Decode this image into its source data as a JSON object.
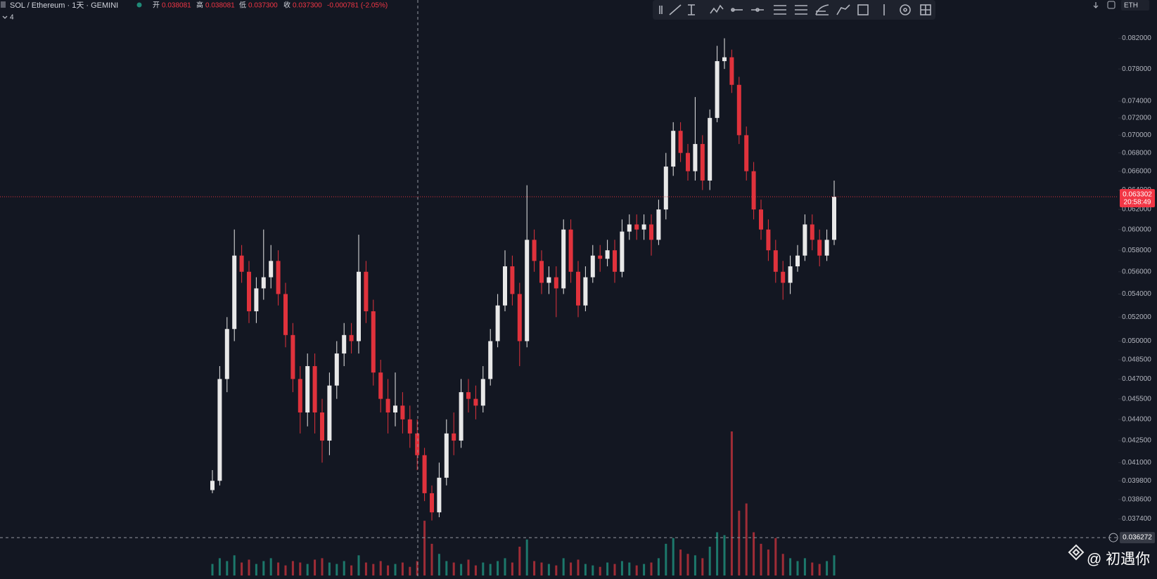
{
  "chart_data": {
    "type": "candlestick",
    "title": "SOL / Ethereum · 1天 · GEMINI",
    "legend": {
      "open_label": "开",
      "open": "0.038081",
      "high_label": "高",
      "high": "0.038081",
      "low_label": "低",
      "low": "0.037300",
      "close_label": "收",
      "close": "0.037300",
      "change": "-0.000781 (-2.05%)"
    },
    "indicator_count": 4,
    "currency": "ETH",
    "watermark": "@ 初遇你",
    "scale": "log",
    "grid": false,
    "up_color": "#e8e8e8",
    "down_color": "#e0323c",
    "volume_up_color": "#1f8a78",
    "volume_down_color": "#b8303a",
    "ylim": [
      0.0339,
      0.0873
    ],
    "yticks": [
      {
        "value": 0.082,
        "label": "0.082000"
      },
      {
        "value": 0.078,
        "label": "0.078000"
      },
      {
        "value": 0.074,
        "label": "0.074000"
      },
      {
        "value": 0.072,
        "label": "0.072000"
      },
      {
        "value": 0.07,
        "label": "0.070000"
      },
      {
        "value": 0.068,
        "label": "0.068000"
      },
      {
        "value": 0.066,
        "label": "0.066000"
      },
      {
        "value": 0.064,
        "label": "0.064000"
      },
      {
        "value": 0.062,
        "label": "0.062000"
      },
      {
        "value": 0.06,
        "label": "0.060000"
      },
      {
        "value": 0.058,
        "label": "0.058000"
      },
      {
        "value": 0.056,
        "label": "0.056000"
      },
      {
        "value": 0.054,
        "label": "0.054000"
      },
      {
        "value": 0.052,
        "label": "0.052000"
      },
      {
        "value": 0.05,
        "label": "0.050000"
      },
      {
        "value": 0.0485,
        "label": "0.048500"
      },
      {
        "value": 0.047,
        "label": "0.047000"
      },
      {
        "value": 0.0455,
        "label": "0.045500"
      },
      {
        "value": 0.044,
        "label": "0.044000"
      },
      {
        "value": 0.0425,
        "label": "0.042500"
      },
      {
        "value": 0.041,
        "label": "0.041000"
      },
      {
        "value": 0.0398,
        "label": "0.039800"
      },
      {
        "value": 0.0386,
        "label": "0.038600"
      },
      {
        "value": 0.0374,
        "label": "0.037400"
      }
    ],
    "last_price": {
      "value": 0.063302,
      "label": "0.063302"
    },
    "countdown": "20:58:49",
    "crosshair_price": {
      "value": 0.036272,
      "label": "0.036272"
    },
    "open": [
      0.0392,
      0.0398,
      0.047,
      0.051,
      0.0575,
      0.056,
      0.0525,
      0.0545,
      0.0555,
      0.057,
      0.054,
      0.0505,
      0.047,
      0.0445,
      0.048,
      0.0445,
      0.0425,
      0.0465,
      0.049,
      0.0505,
      0.05,
      0.056,
      0.0525,
      0.0475,
      0.0455,
      0.0445,
      0.045,
      0.044,
      0.043,
      0.0415,
      0.039,
      0.0378,
      0.04,
      0.043,
      0.0425,
      0.046,
      0.0455,
      0.045,
      0.047,
      0.05,
      0.053,
      0.0565,
      0.054,
      0.05,
      0.059,
      0.057,
      0.055,
      0.0555,
      0.0545,
      0.06,
      0.056,
      0.053,
      0.0555,
      0.0575,
      0.0572,
      0.058,
      0.056,
      0.0598,
      0.0605,
      0.06,
      0.0605,
      0.059,
      0.062,
      0.0665,
      0.0705,
      0.068,
      0.066,
      0.069,
      0.065,
      0.072,
      0.079,
      0.0795,
      0.076,
      0.07,
      0.066,
      0.062,
      0.06,
      0.058,
      0.056,
      0.055,
      0.0565,
      0.0575,
      0.0605,
      0.059,
      0.0575,
      0.059
    ],
    "high": [
      0.0405,
      0.048,
      0.052,
      0.06,
      0.0585,
      0.057,
      0.0555,
      0.06,
      0.0585,
      0.058,
      0.055,
      0.0515,
      0.048,
      0.049,
      0.049,
      0.0455,
      0.0475,
      0.05,
      0.0515,
      0.0515,
      0.0595,
      0.057,
      0.0535,
      0.0485,
      0.047,
      0.0475,
      0.046,
      0.045,
      0.044,
      0.042,
      0.0395,
      0.041,
      0.044,
      0.0445,
      0.047,
      0.047,
      0.0465,
      0.048,
      0.051,
      0.054,
      0.058,
      0.0575,
      0.055,
      0.0645,
      0.06,
      0.058,
      0.0565,
      0.0565,
      0.061,
      0.061,
      0.057,
      0.0565,
      0.0585,
      0.0585,
      0.059,
      0.059,
      0.061,
      0.0615,
      0.0615,
      0.0615,
      0.0615,
      0.063,
      0.068,
      0.0715,
      0.0715,
      0.069,
      0.0745,
      0.07,
      0.073,
      0.081,
      0.082,
      0.0805,
      0.077,
      0.071,
      0.067,
      0.063,
      0.061,
      0.059,
      0.057,
      0.0575,
      0.0585,
      0.0615,
      0.0615,
      0.06,
      0.06,
      0.065
    ],
    "low": [
      0.039,
      0.0395,
      0.046,
      0.05,
      0.055,
      0.0515,
      0.0515,
      0.0535,
      0.0545,
      0.053,
      0.0495,
      0.046,
      0.043,
      0.0435,
      0.043,
      0.041,
      0.0415,
      0.0455,
      0.048,
      0.049,
      0.049,
      0.0515,
      0.0465,
      0.0445,
      0.043,
      0.0435,
      0.043,
      0.042,
      0.0405,
      0.0385,
      0.0373,
      0.0375,
      0.0395,
      0.0415,
      0.042,
      0.0445,
      0.044,
      0.0445,
      0.0465,
      0.0495,
      0.0525,
      0.053,
      0.048,
      0.0495,
      0.056,
      0.054,
      0.054,
      0.052,
      0.054,
      0.055,
      0.052,
      0.0525,
      0.055,
      0.056,
      0.0565,
      0.055,
      0.0555,
      0.059,
      0.059,
      0.059,
      0.0575,
      0.0585,
      0.061,
      0.0655,
      0.067,
      0.065,
      0.065,
      0.064,
      0.064,
      0.0715,
      0.078,
      0.075,
      0.069,
      0.065,
      0.061,
      0.059,
      0.057,
      0.055,
      0.0535,
      0.054,
      0.056,
      0.057,
      0.058,
      0.0565,
      0.057,
      0.0585
    ],
    "close": [
      0.0398,
      0.047,
      0.051,
      0.0575,
      0.056,
      0.0525,
      0.0545,
      0.0555,
      0.057,
      0.054,
      0.0505,
      0.047,
      0.0445,
      0.048,
      0.0445,
      0.0425,
      0.0465,
      0.049,
      0.0505,
      0.05,
      0.056,
      0.0525,
      0.0475,
      0.0455,
      0.0445,
      0.045,
      0.044,
      0.043,
      0.0415,
      0.039,
      0.0378,
      0.04,
      0.043,
      0.0425,
      0.046,
      0.0455,
      0.045,
      0.047,
      0.05,
      0.053,
      0.0565,
      0.054,
      0.05,
      0.059,
      0.057,
      0.055,
      0.0555,
      0.0545,
      0.06,
      0.056,
      0.053,
      0.0555,
      0.0575,
      0.0572,
      0.058,
      0.056,
      0.0598,
      0.0605,
      0.06,
      0.0605,
      0.059,
      0.062,
      0.0665,
      0.0705,
      0.068,
      0.066,
      0.069,
      0.065,
      0.072,
      0.079,
      0.0795,
      0.076,
      0.07,
      0.066,
      0.062,
      0.06,
      0.058,
      0.056,
      0.055,
      0.0565,
      0.0575,
      0.0605,
      0.059,
      0.0575,
      0.059,
      0.0633
    ],
    "volume": [
      8,
      12,
      10,
      14,
      9,
      11,
      8,
      10,
      12,
      9,
      7,
      10,
      9,
      8,
      11,
      12,
      9,
      8,
      10,
      7,
      14,
      9,
      8,
      10,
      7,
      8,
      9,
      6,
      10,
      38,
      22,
      15,
      10,
      9,
      8,
      11,
      7,
      9,
      8,
      10,
      12,
      9,
      20,
      25,
      10,
      9,
      8,
      7,
      12,
      9,
      11,
      8,
      7,
      6,
      9,
      8,
      10,
      9,
      7,
      8,
      9,
      12,
      22,
      26,
      18,
      15,
      14,
      12,
      20,
      30,
      28,
      100,
      45,
      50,
      30,
      22,
      18,
      26,
      15,
      12,
      10,
      12,
      9,
      8,
      10,
      14
    ]
  }
}
